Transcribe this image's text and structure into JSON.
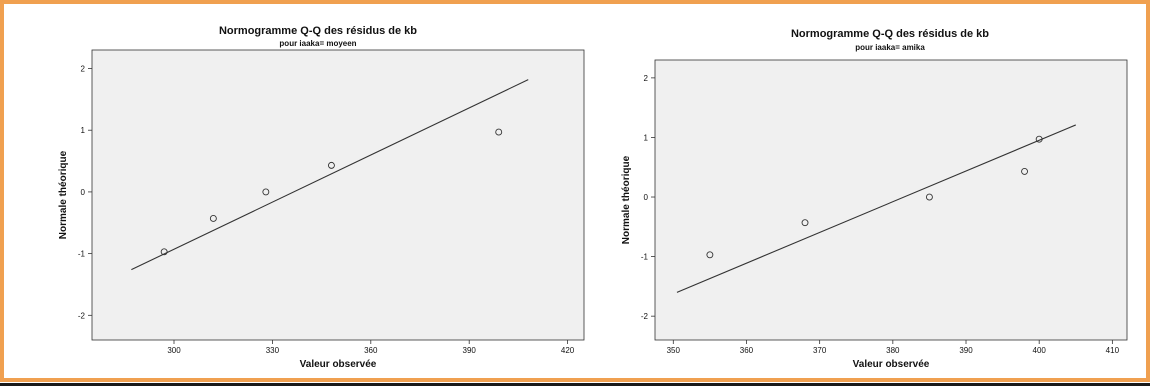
{
  "colors": {
    "frame_border": "#f0a050",
    "plot_background": "#f0f0f0",
    "line": "#333333",
    "marker": "#333333"
  },
  "chart_data": [
    {
      "type": "scatter",
      "title": "Normogramme Q-Q des résidus de kb",
      "subtitle": "pour iaaka= moyeen",
      "xlabel": "Valeur observée",
      "ylabel": "Normale théorique",
      "xlim": [
        275,
        425
      ],
      "ylim": [
        -2.4,
        2.3
      ],
      "xticks": [
        300,
        330,
        360,
        390,
        420
      ],
      "yticks": [
        -2,
        -1,
        0,
        1,
        2
      ],
      "grid": false,
      "points": [
        {
          "x": 297,
          "y": -0.97
        },
        {
          "x": 312,
          "y": -0.43
        },
        {
          "x": 328,
          "y": 0.0
        },
        {
          "x": 348,
          "y": 0.43
        },
        {
          "x": 399,
          "y": 0.97
        }
      ],
      "reference_line": {
        "x": [
          287,
          408
        ],
        "y": [
          -1.26,
          1.82
        ]
      }
    },
    {
      "type": "scatter",
      "title": "Normogramme Q-Q des résidus de kb",
      "subtitle": "pour iaaka= amika",
      "xlabel": "Valeur observée",
      "ylabel": "Normale théorique",
      "xlim": [
        347.5,
        412
      ],
      "ylim": [
        -2.4,
        2.3
      ],
      "xticks": [
        350,
        360,
        370,
        380,
        390,
        400,
        410
      ],
      "yticks": [
        -2,
        -1,
        0,
        1,
        2
      ],
      "grid": false,
      "points": [
        {
          "x": 355,
          "y": -0.97
        },
        {
          "x": 368,
          "y": -0.43
        },
        {
          "x": 385,
          "y": 0.0
        },
        {
          "x": 398,
          "y": 0.43
        },
        {
          "x": 400,
          "y": 0.97
        }
      ],
      "reference_line": {
        "x": [
          350.5,
          405
        ],
        "y": [
          -1.6,
          1.21
        ]
      }
    }
  ]
}
